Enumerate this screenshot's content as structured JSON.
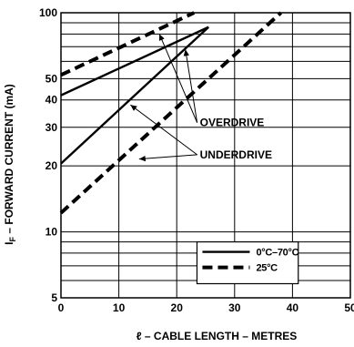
{
  "chart_data": {
    "type": "line",
    "xlabel": "ℓ – CABLE LENGTH – METRES",
    "ylabel_main": "I",
    "ylabel_sub": "F",
    "ylabel_rest": " – FORWARD CURRENT (mA)",
    "xlim": [
      0,
      50
    ],
    "ylim": [
      5,
      100
    ],
    "yscale": "log",
    "grid": true,
    "x_ticks": [
      0,
      10,
      20,
      30,
      40,
      50
    ],
    "y_tick_labels": [
      5,
      10,
      20,
      30,
      40,
      50,
      100
    ],
    "y_grid": [
      5,
      6,
      7,
      8,
      9,
      10,
      20,
      30,
      40,
      50,
      60,
      70,
      80,
      90,
      100
    ],
    "legend_position": "bottom-right",
    "legend": [
      {
        "label": "0°C–70°C",
        "style": "solid"
      },
      {
        "label": "25°C",
        "style": "dashed"
      }
    ],
    "series": [
      {
        "name": "0°C–70°C",
        "group": "overdrive",
        "style": "solid",
        "x": [
          0,
          25.5
        ],
        "y": [
          42,
          86
        ]
      },
      {
        "name": "0°C–70°C",
        "group": "underdrive",
        "style": "solid",
        "x": [
          0,
          25.5
        ],
        "y": [
          20.5,
          86
        ]
      },
      {
        "name": "25°C",
        "group": "overdrive",
        "style": "dashed",
        "x": [
          0,
          23
        ],
        "y": [
          52,
          100
        ]
      },
      {
        "name": "25°C",
        "group": "underdrive",
        "style": "dashed",
        "x": [
          0,
          38
        ],
        "y": [
          12.2,
          100
        ]
      }
    ],
    "annotations": [
      {
        "text": "OVERDRIVE",
        "anchor": [
          24,
          31.5
        ],
        "arrows_to": [
          [
            17,
            80
          ],
          [
            21.5,
            68
          ]
        ]
      },
      {
        "text": "UNDERDRIVE",
        "anchor": [
          24,
          22.5
        ],
        "arrows_to": [
          [
            12,
            38
          ],
          [
            13.5,
            21.5
          ]
        ]
      }
    ]
  }
}
